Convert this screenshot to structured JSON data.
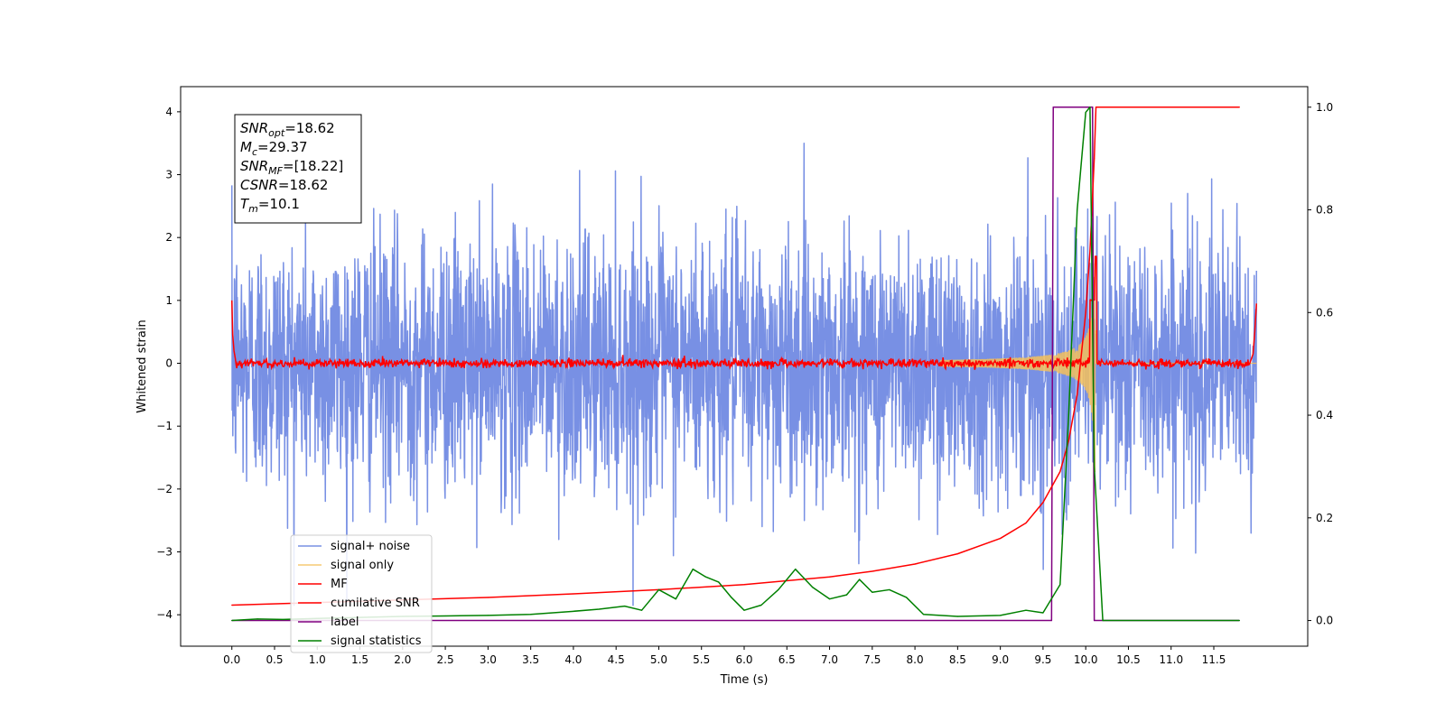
{
  "chart_data": {
    "type": "line",
    "xlabel": "Time (s)",
    "ylabel": "Whitened strain",
    "xlim": [
      -0.6,
      12.6
    ],
    "ylim": [
      -4.5,
      4.4
    ],
    "ylim_right": [
      -0.05,
      1.04
    ],
    "x_ticks": [
      0.0,
      0.5,
      1.0,
      1.5,
      2.0,
      2.5,
      3.0,
      3.5,
      4.0,
      4.5,
      5.0,
      5.5,
      6.0,
      6.5,
      7.0,
      7.5,
      8.0,
      8.5,
      9.0,
      9.5,
      10.0,
      10.5,
      11.0,
      11.5
    ],
    "x_tick_labels": [
      "0.0",
      "0.5",
      "1.0",
      "1.5",
      "2.0",
      "2.5",
      "3.0",
      "3.5",
      "4.0",
      "4.5",
      "5.0",
      "5.5",
      "6.0",
      "6.5",
      "7.0",
      "7.5",
      "8.0",
      "8.5",
      "9.0",
      "9.5",
      "10.0",
      "10.5",
      "11.0",
      "11.5"
    ],
    "y_ticks": [
      -4,
      -3,
      -2,
      -1,
      0,
      1,
      2,
      3,
      4
    ],
    "y_tick_labels": [
      "−4",
      "−3",
      "−2",
      "−1",
      "0",
      "1",
      "2",
      "3",
      "4"
    ],
    "y_ticks_right": [
      0.0,
      0.2,
      0.4,
      0.6,
      0.8,
      1.0
    ],
    "y_tick_labels_right": [
      "0.0",
      "0.2",
      "0.4",
      "0.6",
      "0.8",
      "1.0"
    ],
    "legend_position": "lower-left",
    "annotation": [
      {
        "main": "SNR",
        "sub": "opt",
        "rest": "=18.62"
      },
      {
        "main": "M",
        "sub": "c",
        "rest": "=29.37"
      },
      {
        "main": "SNR",
        "sub": "MF",
        "rest": "=[18.22]"
      },
      {
        "main": "CSNR",
        "sub": "",
        "rest": "=18.62"
      },
      {
        "main": "T",
        "sub": "m",
        "rest": "=10.1"
      }
    ],
    "series": [
      {
        "name": "signal+ noise",
        "color": "#7890e4",
        "axis": "left",
        "description": "whitened noise, spread roughly between -3.8 and 3.9",
        "x_range": [
          0.0,
          12.0
        ]
      },
      {
        "name": "signal only",
        "color": "#f5c15a",
        "axis": "left",
        "description": "chirp with amplitude rising from 0 near 8.5 s to about 1.7 at 10.1 s, then zero"
      },
      {
        "name": "MF",
        "color": "#ff0000",
        "axis": "left",
        "description": "matched filter output near 0, about 1.0 at both edges and peaking about 1.7 near 10.1 s"
      },
      {
        "name": "cumilative SNR",
        "color": "#ff0000",
        "axis": "right",
        "x": [
          0.0,
          1.0,
          2.0,
          3.0,
          4.0,
          5.0,
          6.0,
          7.0,
          7.5,
          8.0,
          8.5,
          9.0,
          9.3,
          9.5,
          9.7,
          9.8,
          9.9,
          10.0,
          10.05,
          10.1,
          10.12,
          11.0,
          11.8
        ],
        "values": [
          0.03,
          0.035,
          0.04,
          0.045,
          0.052,
          0.06,
          0.07,
          0.085,
          0.096,
          0.11,
          0.13,
          0.16,
          0.19,
          0.23,
          0.29,
          0.35,
          0.44,
          0.6,
          0.72,
          0.9,
          1.0,
          1.0,
          1.0
        ]
      },
      {
        "name": "label",
        "color": "#800080",
        "axis": "right",
        "x": [
          0.0,
          9.6,
          9.62,
          10.08,
          10.1,
          11.8
        ],
        "values": [
          0.0,
          0.0,
          1.0,
          1.0,
          0.0,
          0.0
        ]
      },
      {
        "name": "signal statistics",
        "color": "#008000",
        "axis": "right",
        "x": [
          0.0,
          0.3,
          0.6,
          1.0,
          1.5,
          2.0,
          2.5,
          3.0,
          3.5,
          4.0,
          4.3,
          4.6,
          4.8,
          5.0,
          5.2,
          5.4,
          5.55,
          5.7,
          5.85,
          6.0,
          6.2,
          6.4,
          6.6,
          6.8,
          7.0,
          7.2,
          7.35,
          7.5,
          7.7,
          7.9,
          8.1,
          8.5,
          9.0,
          9.3,
          9.5,
          9.7,
          9.8,
          9.9,
          10.0,
          10.05,
          10.1,
          10.2,
          11.8
        ],
        "values": [
          0.0,
          0.003,
          0.002,
          0.004,
          0.006,
          0.008,
          0.009,
          0.01,
          0.012,
          0.018,
          0.022,
          0.028,
          0.02,
          0.06,
          0.042,
          0.1,
          0.085,
          0.075,
          0.045,
          0.02,
          0.03,
          0.06,
          0.1,
          0.065,
          0.042,
          0.05,
          0.08,
          0.055,
          0.06,
          0.045,
          0.012,
          0.008,
          0.01,
          0.02,
          0.015,
          0.07,
          0.4,
          0.8,
          0.99,
          1.0,
          0.3,
          0.0,
          0.0
        ]
      }
    ]
  }
}
